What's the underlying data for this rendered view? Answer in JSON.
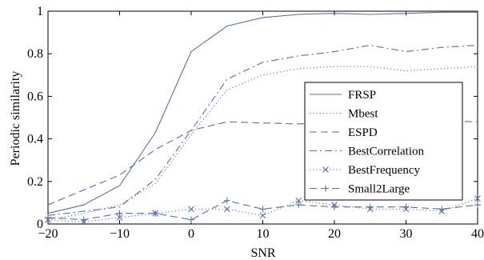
{
  "chart_data": {
    "type": "line",
    "title": "",
    "xlabel": "SNR",
    "ylabel": "Periodic similarity",
    "xlim": [
      -20,
      40
    ],
    "ylim": [
      0,
      1
    ],
    "xticks": [
      "−20",
      "−10",
      "0",
      "10",
      "20",
      "30",
      "40"
    ],
    "xtick_values": [
      -20,
      -10,
      0,
      10,
      20,
      30,
      40
    ],
    "yticks": [
      "0",
      "0.2",
      "0.4",
      "0.6",
      "0.8",
      "1"
    ],
    "ytick_values": [
      0,
      0.2,
      0.4,
      0.6,
      0.8,
      1
    ],
    "grid": false,
    "legend_position": "right",
    "x": [
      -20,
      -15,
      -10,
      -5,
      0,
      5,
      10,
      15,
      20,
      25,
      30,
      35,
      40
    ],
    "color": "#5a6f9e",
    "series": [
      {
        "name": "FRSP",
        "style": "solid",
        "values": [
          0.05,
          0.09,
          0.18,
          0.43,
          0.81,
          0.93,
          0.97,
          0.985,
          0.99,
          0.985,
          0.99,
          0.995,
          0.995
        ]
      },
      {
        "name": "Mbest",
        "style": "dotted",
        "values": [
          0.02,
          0.05,
          0.09,
          0.19,
          0.42,
          0.63,
          0.7,
          0.73,
          0.74,
          0.74,
          0.72,
          0.73,
          0.74
        ]
      },
      {
        "name": "ESPD",
        "style": "dashed",
        "values": [
          0.09,
          0.16,
          0.23,
          0.35,
          0.44,
          0.48,
          0.475,
          0.47,
          0.48,
          0.48,
          0.48,
          0.485,
          0.48
        ]
      },
      {
        "name": "BestCorrelation",
        "style": "dashdot",
        "values": [
          0.04,
          0.06,
          0.08,
          0.21,
          0.44,
          0.68,
          0.76,
          0.79,
          0.81,
          0.84,
          0.81,
          0.83,
          0.84
        ]
      },
      {
        "name": "BestFrequency",
        "style": "dotted-x",
        "values": [
          0.02,
          0.01,
          0.03,
          0.05,
          0.07,
          0.07,
          0.04,
          0.11,
          0.09,
          0.07,
          0.07,
          0.06,
          0.12
        ]
      },
      {
        "name": "Small2Large",
        "style": "dashed-plus",
        "values": [
          0.03,
          0.02,
          0.05,
          0.05,
          0.02,
          0.11,
          0.07,
          0.09,
          0.08,
          0.08,
          0.08,
          0.07,
          0.09
        ]
      }
    ]
  }
}
